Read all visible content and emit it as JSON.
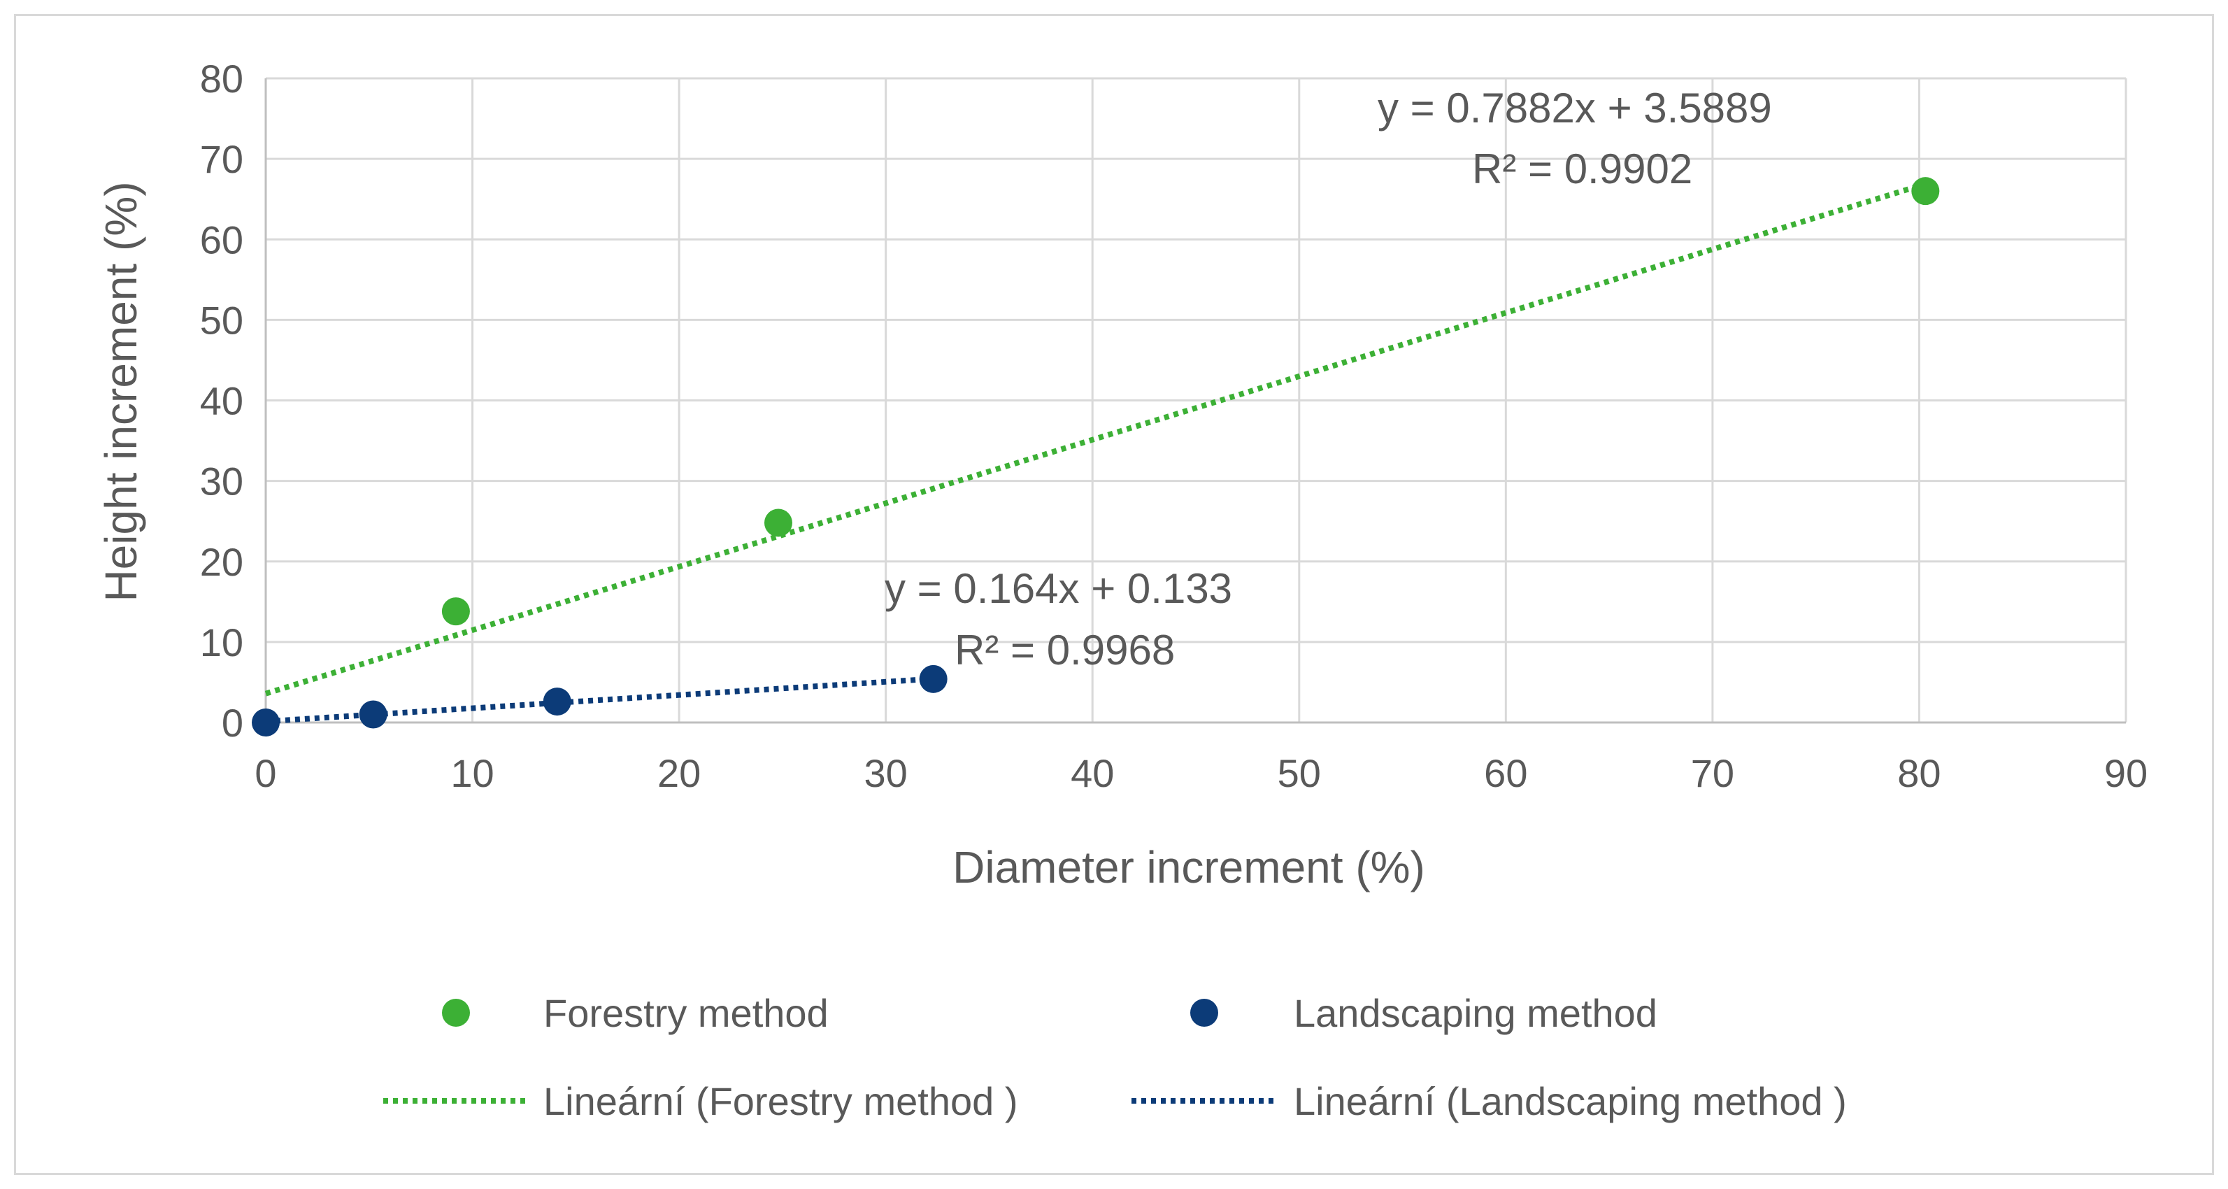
{
  "chart_data": {
    "type": "scatter",
    "xlabel": "Diameter increment (%)",
    "ylabel": "Height increment (%)",
    "xlim": [
      0,
      90
    ],
    "ylim": [
      0,
      80
    ],
    "xticks": [
      0,
      10,
      20,
      30,
      40,
      50,
      60,
      70,
      80,
      90
    ],
    "yticks": [
      0,
      10,
      20,
      30,
      40,
      50,
      60,
      70,
      80
    ],
    "grid": true,
    "legend_position": "bottom",
    "series": [
      {
        "name": "Forestry method",
        "color": "#3cb035",
        "points": [
          {
            "x": 9.2,
            "y": 13.8
          },
          {
            "x": 24.8,
            "y": 24.8
          },
          {
            "x": 80.3,
            "y": 66.0
          }
        ],
        "trendline": {
          "name": "Lineární (Forestry method )",
          "slope": 0.7882,
          "intercept": 3.5889,
          "x_range": [
            0,
            80.3
          ],
          "equation": "y = 0.7882x + 3.5889",
          "r2": "R² = 0.9902"
        }
      },
      {
        "name": "Landscaping method",
        "color": "#0c3b78",
        "points": [
          {
            "x": 0,
            "y": 0
          },
          {
            "x": 5.2,
            "y": 1.0
          },
          {
            "x": 14.1,
            "y": 2.6
          },
          {
            "x": 32.3,
            "y": 5.4
          }
        ],
        "trendline": {
          "name": "Lineární (Landscaping method )",
          "slope": 0.164,
          "intercept": 0.133,
          "x_range": [
            0,
            32.3
          ],
          "equation": "y = 0.164x + 0.133",
          "r2": "R² = 0.9968"
        }
      }
    ]
  }
}
